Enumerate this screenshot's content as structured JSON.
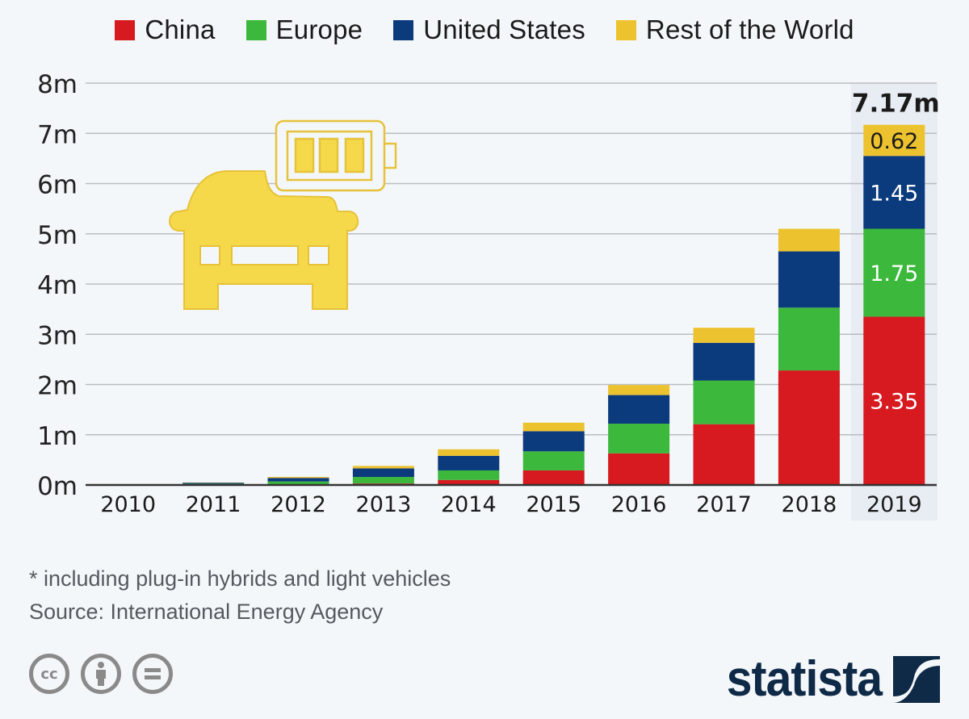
{
  "legend": [
    {
      "label": "China",
      "color": "#d71920"
    },
    {
      "label": "Europe",
      "color": "#3cb83c"
    },
    {
      "label": "United States",
      "color": "#0b3a7d"
    },
    {
      "label": "Rest of the World",
      "color": "#ecc22e"
    }
  ],
  "chart_data": {
    "type": "bar",
    "stacked": true,
    "title": "",
    "xlabel": "",
    "ylabel": "",
    "ylim": [
      0,
      8
    ],
    "y_ticks": [
      0,
      1,
      2,
      3,
      4,
      5,
      6,
      7,
      8
    ],
    "y_tick_labels": [
      "0m",
      "1m",
      "2m",
      "3m",
      "4m",
      "5m",
      "6m",
      "7m",
      "8m"
    ],
    "grid": true,
    "legend_position": "top",
    "unit": "million vehicles",
    "categories": [
      "2010",
      "2011",
      "2012",
      "2013",
      "2014",
      "2015",
      "2016",
      "2017",
      "2018",
      "2019"
    ],
    "series": [
      {
        "name": "China",
        "color": "#d71920",
        "values": [
          0.002,
          0.005,
          0.01,
          0.03,
          0.1,
          0.29,
          0.63,
          1.21,
          2.28,
          3.35
        ]
      },
      {
        "name": "Europe",
        "color": "#3cb83c",
        "values": [
          0.002,
          0.02,
          0.06,
          0.13,
          0.19,
          0.38,
          0.59,
          0.87,
          1.25,
          1.75
        ]
      },
      {
        "name": "United States",
        "color": "#0b3a7d",
        "values": [
          0.001,
          0.02,
          0.07,
          0.17,
          0.29,
          0.4,
          0.57,
          0.75,
          1.12,
          1.45
        ]
      },
      {
        "name": "Rest of the World",
        "color": "#ecc22e",
        "values": [
          0.001,
          0.005,
          0.02,
          0.05,
          0.13,
          0.17,
          0.2,
          0.3,
          0.45,
          0.62
        ]
      }
    ],
    "highlight": {
      "category": "2019",
      "total_label": "7.17m",
      "segment_labels": [
        "3.35",
        "1.75",
        "1.45",
        "0.62"
      ]
    }
  },
  "footnote": {
    "note": "* including plug-in hybrids and light vehicles",
    "source": "Source: International Energy Agency"
  },
  "license_icons": [
    {
      "name": "creative-commons-icon",
      "glyph": "cc"
    },
    {
      "name": "attribution-icon",
      "glyph": "i"
    },
    {
      "name": "no-derivatives-icon",
      "glyph": "="
    }
  ],
  "brand": {
    "name": "statista"
  },
  "illustration": {
    "icon": "electric-car-battery-icon",
    "color": "#f5d94a"
  }
}
